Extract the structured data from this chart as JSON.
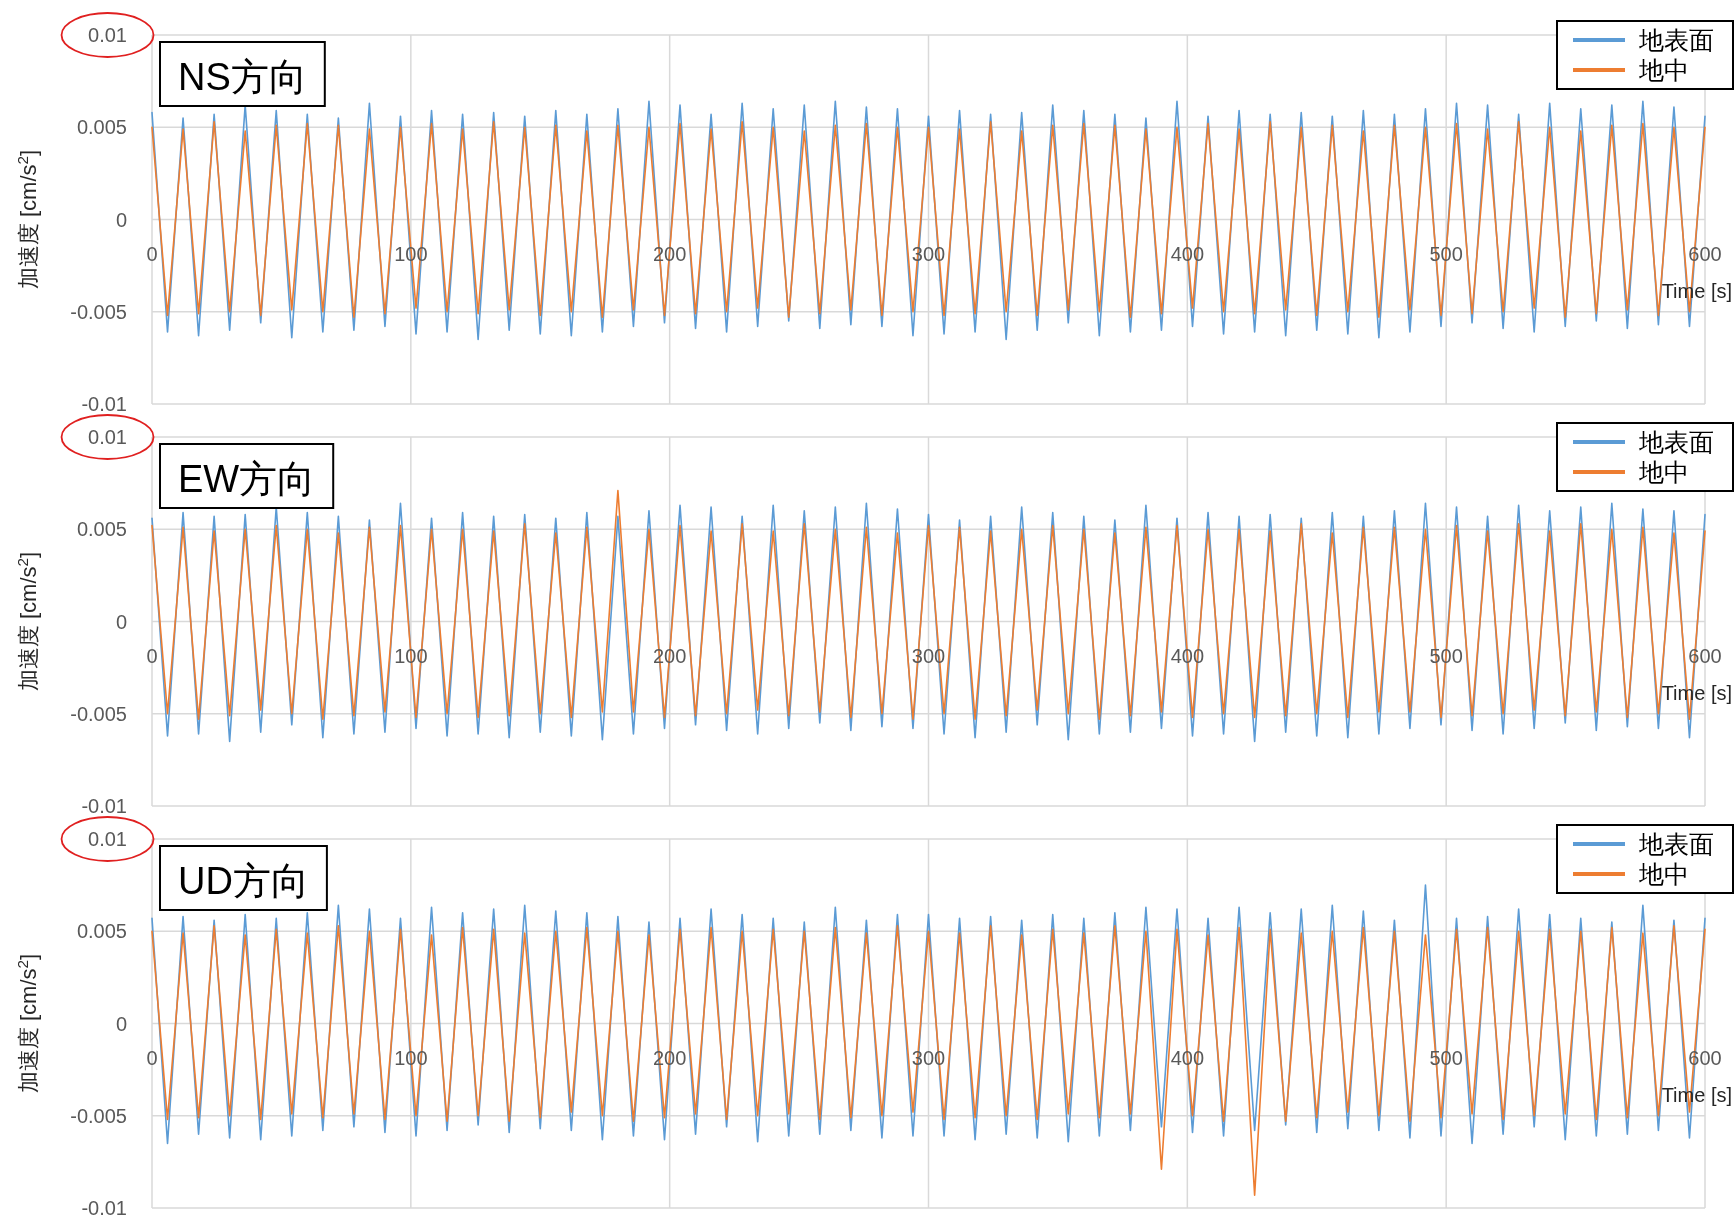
{
  "chart_data": [
    {
      "type": "line",
      "title": "NS方向",
      "xlabel": "Time [s]",
      "ylabel": "加速度 [cm/s$^{2}$]",
      "xlim": [
        0,
        600
      ],
      "xticks": [
        0,
        100,
        200,
        300,
        400,
        500,
        600
      ],
      "ylim": [
        -0.01,
        0.01
      ],
      "yticks": [
        -0.01,
        -0.005,
        0,
        0.005,
        0.01
      ],
      "grid": true,
      "legend": "top right",
      "x": [
        0,
        6,
        12,
        18,
        24,
        30,
        36,
        42,
        48,
        54,
        60,
        66,
        72,
        78,
        84,
        90,
        96,
        102,
        108,
        114,
        120,
        126,
        132,
        138,
        144,
        150,
        156,
        162,
        168,
        174,
        180,
        186,
        192,
        198,
        204,
        210,
        216,
        222,
        228,
        234,
        240,
        246,
        252,
        258,
        264,
        270,
        276,
        282,
        288,
        294,
        300,
        306,
        312,
        318,
        324,
        330,
        336,
        342,
        348,
        354,
        360,
        366,
        372,
        378,
        384,
        390,
        396,
        402,
        408,
        414,
        420,
        426,
        432,
        438,
        444,
        450,
        456,
        462,
        468,
        474,
        480,
        486,
        492,
        498,
        504,
        510,
        516,
        522,
        528,
        534,
        540,
        546,
        552,
        558,
        564,
        570,
        576,
        582,
        588,
        594,
        600
      ],
      "series": [
        {
          "name": "地表面",
          "color": "#5b9bd5",
          "values": [
            0.0058,
            -0.0061,
            0.0055,
            -0.0063,
            0.0057,
            -0.006,
            0.0062,
            -0.0056,
            0.0059,
            -0.0064,
            0.0057,
            -0.0061,
            0.0055,
            -0.006,
            0.0063,
            -0.0058,
            0.0056,
            -0.0062,
            0.0059,
            -0.0061,
            0.0057,
            -0.0065,
            0.0058,
            -0.006,
            0.0056,
            -0.0062,
            0.0059,
            -0.0063,
            0.0057,
            -0.0061,
            0.006,
            -0.0058,
            0.0064,
            -0.0056,
            0.0062,
            -0.0059,
            0.0057,
            -0.0061,
            0.0063,
            -0.0058,
            0.006,
            -0.0055,
            0.0062,
            -0.0059,
            0.0064,
            -0.0057,
            0.0061,
            -0.0058,
            0.006,
            -0.0063,
            0.0056,
            -0.0062,
            0.0059,
            -0.0061,
            0.0057,
            -0.0065,
            0.0058,
            -0.006,
            0.0062,
            -0.0056,
            0.0059,
            -0.0063,
            0.0057,
            -0.0061,
            0.0055,
            -0.006,
            0.0064,
            -0.0058,
            0.0056,
            -0.0062,
            0.0059,
            -0.0061,
            0.0057,
            -0.0063,
            0.0058,
            -0.006,
            0.0056,
            -0.0062,
            0.0059,
            -0.0064,
            0.0057,
            -0.0061,
            0.006,
            -0.0058,
            0.0063,
            -0.0056,
            0.0062,
            -0.0059,
            0.0057,
            -0.0061,
            0.0063,
            -0.0058,
            0.006,
            -0.0055,
            0.0062,
            -0.0059,
            0.0064,
            -0.0057,
            0.0061,
            -0.0058,
            0.0056
          ]
        },
        {
          "name": "地中",
          "color": "#ed7d31",
          "values": [
            0.005,
            -0.0052,
            0.0049,
            -0.0051,
            0.0053,
            -0.005,
            0.0048,
            -0.0052,
            0.0051,
            -0.0049,
            0.0052,
            -0.005,
            0.0051,
            -0.0053,
            0.0049,
            -0.0051,
            0.005,
            -0.0048,
            0.0052,
            -0.005,
            0.0049,
            -0.0051,
            0.0053,
            -0.0049,
            0.005,
            -0.0052,
            0.0051,
            -0.005,
            0.0048,
            -0.0053,
            0.0051,
            -0.0049,
            0.005,
            -0.0052,
            0.0052,
            -0.0051,
            0.0049,
            -0.005,
            0.0053,
            -0.0048,
            0.005,
            -0.0053,
            0.0048,
            -0.0051,
            0.0051,
            -0.0049,
            0.0052,
            -0.0052,
            0.005,
            -0.005,
            0.005,
            -0.0052,
            0.0049,
            -0.0051,
            0.0053,
            -0.005,
            0.0048,
            -0.0052,
            0.0051,
            -0.0049,
            0.0052,
            -0.005,
            0.0051,
            -0.0053,
            0.0049,
            -0.0051,
            0.005,
            -0.0048,
            0.0052,
            -0.005,
            0.0049,
            -0.0051,
            0.0053,
            -0.0049,
            0.005,
            -0.0052,
            0.0051,
            -0.005,
            0.0048,
            -0.0053,
            0.0051,
            -0.0049,
            0.005,
            -0.0052,
            0.0052,
            -0.0051,
            0.0049,
            -0.005,
            0.0053,
            -0.0048,
            0.005,
            -0.0053,
            0.0048,
            -0.0051,
            0.0051,
            -0.0049,
            0.0052,
            -0.0052,
            0.005,
            -0.005,
            0.005
          ]
        }
      ]
    },
    {
      "type": "line",
      "title": "EW方向",
      "xlabel": "Time [s]",
      "ylabel": "加速度 [cm/s$^{2}$]",
      "xlim": [
        0,
        600
      ],
      "xticks": [
        0,
        100,
        200,
        300,
        400,
        500,
        600
      ],
      "ylim": [
        -0.01,
        0.01
      ],
      "yticks": [
        -0.01,
        -0.005,
        0,
        0.005,
        0.01
      ],
      "grid": true,
      "legend": "top right",
      "x": [
        0,
        6,
        12,
        18,
        24,
        30,
        36,
        42,
        48,
        54,
        60,
        66,
        72,
        78,
        84,
        90,
        96,
        102,
        108,
        114,
        120,
        126,
        132,
        138,
        144,
        150,
        156,
        162,
        168,
        174,
        180,
        186,
        192,
        198,
        204,
        210,
        216,
        222,
        228,
        234,
        240,
        246,
        252,
        258,
        264,
        270,
        276,
        282,
        288,
        294,
        300,
        306,
        312,
        318,
        324,
        330,
        336,
        342,
        348,
        354,
        360,
        366,
        372,
        378,
        384,
        390,
        396,
        402,
        408,
        414,
        420,
        426,
        432,
        438,
        444,
        450,
        456,
        462,
        468,
        474,
        480,
        486,
        492,
        498,
        504,
        510,
        516,
        522,
        528,
        534,
        540,
        546,
        552,
        558,
        564,
        570,
        576,
        582,
        588,
        594,
        600
      ],
      "series": [
        {
          "name": "地表面",
          "color": "#5b9bd5",
          "values": [
            0.0056,
            -0.0062,
            0.0059,
            -0.0061,
            0.0057,
            -0.0065,
            0.0058,
            -0.006,
            0.0062,
            -0.0056,
            0.0059,
            -0.0063,
            0.0057,
            -0.0061,
            0.0055,
            -0.006,
            0.0064,
            -0.0058,
            0.0056,
            -0.0062,
            0.0059,
            -0.0061,
            0.0057,
            -0.0063,
            0.0058,
            -0.006,
            0.0056,
            -0.0062,
            0.0059,
            -0.0064,
            0.0057,
            -0.0061,
            0.006,
            -0.0058,
            0.0063,
            -0.0056,
            0.0062,
            -0.0059,
            0.0057,
            -0.0061,
            0.0063,
            -0.0058,
            0.006,
            -0.0055,
            0.0062,
            -0.0059,
            0.0064,
            -0.0057,
            0.0061,
            -0.0058,
            0.0058,
            -0.0061,
            0.0055,
            -0.0063,
            0.0057,
            -0.006,
            0.0062,
            -0.0056,
            0.0059,
            -0.0064,
            0.0057,
            -0.0061,
            0.0055,
            -0.006,
            0.0063,
            -0.0058,
            0.0056,
            -0.0062,
            0.0059,
            -0.0061,
            0.0057,
            -0.0065,
            0.0058,
            -0.006,
            0.0056,
            -0.0062,
            0.0059,
            -0.0063,
            0.0057,
            -0.0061,
            0.006,
            -0.0058,
            0.0064,
            -0.0056,
            0.0062,
            -0.0059,
            0.0057,
            -0.0061,
            0.0063,
            -0.0058,
            0.006,
            -0.0055,
            0.0062,
            -0.0059,
            0.0064,
            -0.0057,
            0.0061,
            -0.0058,
            0.006,
            -0.0063,
            0.0058
          ]
        },
        {
          "name": "地中",
          "color": "#ed7d31",
          "values": [
            0.0052,
            -0.005,
            0.0051,
            -0.0053,
            0.0049,
            -0.0051,
            0.005,
            -0.0048,
            0.0052,
            -0.005,
            0.005,
            -0.0053,
            0.0048,
            -0.0051,
            0.0051,
            -0.0049,
            0.0052,
            -0.0052,
            0.005,
            -0.005,
            0.005,
            -0.0052,
            0.0049,
            -0.0051,
            0.0053,
            -0.005,
            0.0048,
            -0.0052,
            0.0051,
            -0.0049,
            0.0071,
            -0.0049,
            0.005,
            -0.0052,
            0.0052,
            -0.0051,
            0.0049,
            -0.005,
            0.0053,
            -0.0048,
            0.0049,
            -0.0051,
            0.0053,
            -0.0049,
            0.005,
            -0.0052,
            0.0051,
            -0.005,
            0.0048,
            -0.0053,
            0.0052,
            -0.005,
            0.0051,
            -0.0053,
            0.0049,
            -0.0051,
            0.005,
            -0.0048,
            0.0052,
            -0.005,
            0.005,
            -0.0053,
            0.0048,
            -0.0051,
            0.0051,
            -0.0049,
            0.0052,
            -0.0052,
            0.005,
            -0.005,
            0.005,
            -0.0052,
            0.0049,
            -0.0051,
            0.0053,
            -0.005,
            0.0048,
            -0.0052,
            0.0051,
            -0.0049,
            0.0051,
            -0.0049,
            0.005,
            -0.0052,
            0.0052,
            -0.0051,
            0.0049,
            -0.005,
            0.0053,
            -0.0048,
            0.0049,
            -0.0051,
            0.0053,
            -0.0049,
            0.005,
            -0.0052,
            0.0051,
            -0.005,
            0.0048,
            -0.0053,
            0.0049
          ]
        }
      ]
    },
    {
      "type": "line",
      "title": "UD方向",
      "xlabel": "Time [s]",
      "ylabel": "加速度 [cm/s$^{2}$]",
      "xlim": [
        0,
        600
      ],
      "xticks": [
        0,
        100,
        200,
        300,
        400,
        500,
        600
      ],
      "ylim": [
        -0.01,
        0.01
      ],
      "yticks": [
        -0.01,
        -0.005,
        0,
        0.005,
        0.01
      ],
      "grid": true,
      "legend": "top right",
      "x": [
        0,
        6,
        12,
        18,
        24,
        30,
        36,
        42,
        48,
        54,
        60,
        66,
        72,
        78,
        84,
        90,
        96,
        102,
        108,
        114,
        120,
        126,
        132,
        138,
        144,
        150,
        156,
        162,
        168,
        174,
        180,
        186,
        192,
        198,
        204,
        210,
        216,
        222,
        228,
        234,
        240,
        246,
        252,
        258,
        264,
        270,
        276,
        282,
        288,
        294,
        300,
        306,
        312,
        318,
        324,
        330,
        336,
        342,
        348,
        354,
        360,
        366,
        372,
        378,
        384,
        390,
        396,
        402,
        408,
        414,
        420,
        426,
        432,
        438,
        444,
        450,
        456,
        462,
        468,
        474,
        480,
        486,
        492,
        498,
        504,
        510,
        516,
        522,
        528,
        534,
        540,
        546,
        552,
        558,
        564,
        570,
        576,
        582,
        588,
        594,
        600
      ],
      "series": [
        {
          "name": "地表面",
          "color": "#5b9bd5",
          "values": [
            0.0057,
            -0.0065,
            0.0058,
            -0.006,
            0.0056,
            -0.0062,
            0.0059,
            -0.0063,
            0.0057,
            -0.0061,
            0.006,
            -0.0058,
            0.0064,
            -0.0056,
            0.0062,
            -0.0059,
            0.0057,
            -0.0061,
            0.0063,
            -0.0058,
            0.006,
            -0.0055,
            0.0062,
            -0.0059,
            0.0064,
            -0.0057,
            0.0061,
            -0.0058,
            0.006,
            -0.0063,
            0.0058,
            -0.0061,
            0.0055,
            -0.0063,
            0.0057,
            -0.006,
            0.0062,
            -0.0056,
            0.0059,
            -0.0064,
            0.0057,
            -0.0061,
            0.0055,
            -0.006,
            0.0063,
            -0.0058,
            0.0056,
            -0.0062,
            0.0059,
            -0.0061,
            0.0059,
            -0.0061,
            0.0057,
            -0.0063,
            0.0058,
            -0.006,
            0.0056,
            -0.0062,
            0.0059,
            -0.0064,
            0.0057,
            -0.0061,
            0.006,
            -0.0058,
            0.0063,
            -0.0056,
            0.0062,
            -0.0059,
            0.0057,
            -0.0061,
            0.0063,
            -0.0058,
            0.006,
            -0.0055,
            0.0062,
            -0.0059,
            0.0064,
            -0.0057,
            0.0061,
            -0.0058,
            0.0056,
            -0.0062,
            0.0075,
            -0.0061,
            0.0057,
            -0.0065,
            0.0058,
            -0.006,
            0.0062,
            -0.0056,
            0.0059,
            -0.0063,
            0.0057,
            -0.0061,
            0.0055,
            -0.006,
            0.0064,
            -0.0058,
            0.0056,
            -0.0062,
            0.0057
          ]
        },
        {
          "name": "地中",
          "color": "#ed7d31",
          "values": [
            0.005,
            -0.0052,
            0.0049,
            -0.0051,
            0.0053,
            -0.005,
            0.0048,
            -0.0052,
            0.0051,
            -0.0049,
            0.0049,
            -0.0051,
            0.0053,
            -0.0049,
            0.005,
            -0.0052,
            0.0051,
            -0.005,
            0.0048,
            -0.0053,
            0.0052,
            -0.005,
            0.0051,
            -0.0053,
            0.0049,
            -0.0051,
            0.005,
            -0.0048,
            0.0052,
            -0.005,
            0.005,
            -0.0053,
            0.0048,
            -0.0051,
            0.0051,
            -0.0049,
            0.0052,
            -0.0052,
            0.005,
            -0.005,
            0.0051,
            -0.0049,
            0.005,
            -0.0052,
            0.0052,
            -0.0051,
            0.0049,
            -0.005,
            0.0053,
            -0.0048,
            0.005,
            -0.0052,
            0.0049,
            -0.0051,
            0.0053,
            -0.005,
            0.0048,
            -0.0052,
            0.0051,
            -0.0049,
            0.0049,
            -0.0051,
            0.0053,
            -0.0049,
            0.005,
            -0.0079,
            0.0051,
            -0.005,
            0.0048,
            -0.0053,
            0.0052,
            -0.0093,
            0.0051,
            -0.0053,
            0.0049,
            -0.0051,
            0.005,
            -0.0048,
            0.0052,
            -0.005,
            0.005,
            -0.0053,
            0.0048,
            -0.0051,
            0.0051,
            -0.0049,
            0.0052,
            -0.0052,
            0.005,
            -0.005,
            0.0051,
            -0.0049,
            0.005,
            -0.0052,
            0.0052,
            -0.0051,
            0.0049,
            -0.005,
            0.0053,
            -0.0048,
            0.0051
          ]
        }
      ]
    }
  ]
}
